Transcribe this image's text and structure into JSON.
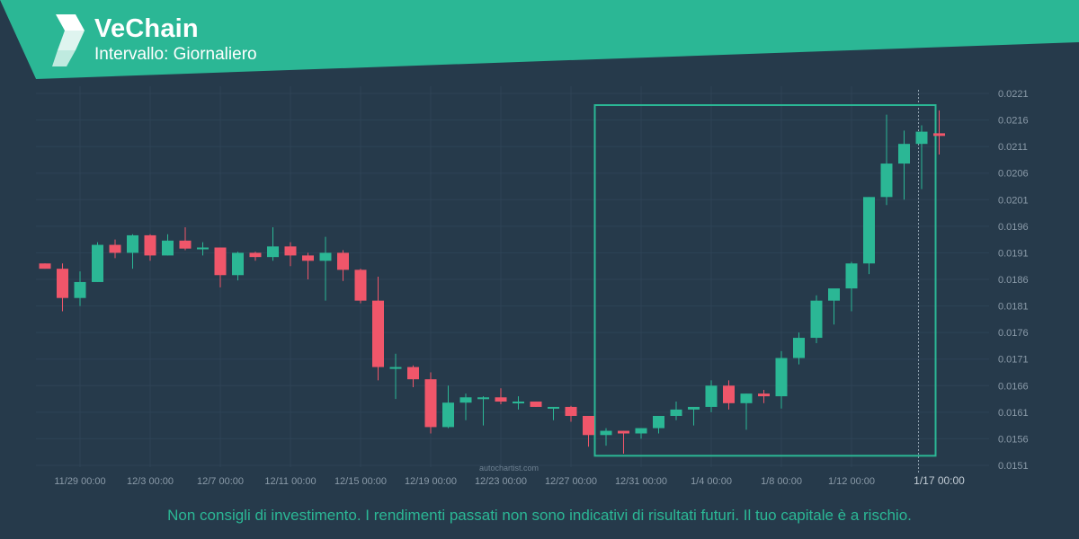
{
  "header": {
    "title": "VeChain",
    "subtitle": "Intervallo: Giornaliero",
    "logo_icon": "vechain-logo-icon"
  },
  "watermark": "autochartist.com",
  "disclaimer": "Non consigli di investimento. I rendimenti passati non sono indicativi di risultati futuri. Il tuo capitale è a rischio.",
  "colors": {
    "background": "#263a4b",
    "brand": "#2bb795",
    "bullish": "#2bb795",
    "bearish": "#f0566a",
    "grid": "#2e4356",
    "axis_text": "#8a9aa8"
  },
  "chart_data": {
    "type": "candlestick",
    "interval": "daily",
    "ylim": [
      0.0151,
      0.0221
    ],
    "y_ticks": [
      0.0151,
      0.0156,
      0.0161,
      0.0166,
      0.0171,
      0.0176,
      0.0181,
      0.0186,
      0.0191,
      0.0196,
      0.0201,
      0.0206,
      0.0211,
      0.0216,
      0.0221
    ],
    "x_tick_labels": [
      {
        "index": 2,
        "label": "11/29 00:00"
      },
      {
        "index": 6,
        "label": "12/3 00:00"
      },
      {
        "index": 10,
        "label": "12/7 00:00"
      },
      {
        "index": 14,
        "label": "12/11 00:00"
      },
      {
        "index": 18,
        "label": "12/15 00:00"
      },
      {
        "index": 22,
        "label": "12/19 00:00"
      },
      {
        "index": 26,
        "label": "12/23 00:00"
      },
      {
        "index": 30,
        "label": "12/27 00:00"
      },
      {
        "index": 34,
        "label": "12/31 00:00"
      },
      {
        "index": 38,
        "label": "1/4 00:00"
      },
      {
        "index": 42,
        "label": "1/8 00:00"
      },
      {
        "index": 46,
        "label": "1/12 00:00"
      },
      {
        "index": 51,
        "label": "1/17 00:00",
        "current": true
      }
    ],
    "candles": [
      {
        "o": 0.0189,
        "h": 0.0189,
        "l": 0.0188,
        "c": 0.0188
      },
      {
        "o": 0.0188,
        "h": 0.0189,
        "l": 0.018,
        "c": 0.01825
      },
      {
        "o": 0.01825,
        "h": 0.01875,
        "l": 0.0181,
        "c": 0.01855
      },
      {
        "o": 0.01855,
        "h": 0.0193,
        "l": 0.01855,
        "c": 0.01925
      },
      {
        "o": 0.01925,
        "h": 0.01935,
        "l": 0.019,
        "c": 0.0191
      },
      {
        "o": 0.0191,
        "h": 0.01945,
        "l": 0.0188,
        "c": 0.01943
      },
      {
        "o": 0.01943,
        "h": 0.01945,
        "l": 0.01895,
        "c": 0.01905
      },
      {
        "o": 0.01905,
        "h": 0.01945,
        "l": 0.01905,
        "c": 0.01933
      },
      {
        "o": 0.01933,
        "h": 0.01958,
        "l": 0.01915,
        "c": 0.01918
      },
      {
        "o": 0.0192,
        "h": 0.0193,
        "l": 0.01905,
        "c": 0.0192
      },
      {
        "o": 0.0192,
        "h": 0.0192,
        "l": 0.01845,
        "c": 0.01868
      },
      {
        "o": 0.01868,
        "h": 0.01912,
        "l": 0.01858,
        "c": 0.0191
      },
      {
        "o": 0.0191,
        "h": 0.01912,
        "l": 0.01895,
        "c": 0.01902
      },
      {
        "o": 0.01902,
        "h": 0.01958,
        "l": 0.01895,
        "c": 0.01922
      },
      {
        "o": 0.01922,
        "h": 0.0193,
        "l": 0.01885,
        "c": 0.01905
      },
      {
        "o": 0.01905,
        "h": 0.0191,
        "l": 0.0186,
        "c": 0.01895
      },
      {
        "o": 0.01895,
        "h": 0.0194,
        "l": 0.0182,
        "c": 0.0191
      },
      {
        "o": 0.0191,
        "h": 0.01915,
        "l": 0.01857,
        "c": 0.01878
      },
      {
        "o": 0.01878,
        "h": 0.0188,
        "l": 0.01815,
        "c": 0.0182
      },
      {
        "o": 0.0182,
        "h": 0.01865,
        "l": 0.0167,
        "c": 0.01695
      },
      {
        "o": 0.01695,
        "h": 0.0172,
        "l": 0.01635,
        "c": 0.01695
      },
      {
        "o": 0.01695,
        "h": 0.01698,
        "l": 0.01657,
        "c": 0.01672
      },
      {
        "o": 0.01672,
        "h": 0.01685,
        "l": 0.0157,
        "c": 0.01582
      },
      {
        "o": 0.01582,
        "h": 0.0166,
        "l": 0.0158,
        "c": 0.01628
      },
      {
        "o": 0.01628,
        "h": 0.01645,
        "l": 0.01595,
        "c": 0.01638
      },
      {
        "o": 0.01638,
        "h": 0.0164,
        "l": 0.01585,
        "c": 0.01638
      },
      {
        "o": 0.01638,
        "h": 0.01655,
        "l": 0.01625,
        "c": 0.0163
      },
      {
        "o": 0.0163,
        "h": 0.0164,
        "l": 0.01615,
        "c": 0.0163
      },
      {
        "o": 0.0163,
        "h": 0.0163,
        "l": 0.0162,
        "c": 0.0162
      },
      {
        "o": 0.0162,
        "h": 0.0162,
        "l": 0.01595,
        "c": 0.0162
      },
      {
        "o": 0.0162,
        "h": 0.01622,
        "l": 0.01592,
        "c": 0.01603
      },
      {
        "o": 0.01603,
        "h": 0.01603,
        "l": 0.01545,
        "c": 0.01567
      },
      {
        "o": 0.01567,
        "h": 0.0158,
        "l": 0.01547,
        "c": 0.01575
      },
      {
        "o": 0.01575,
        "h": 0.01575,
        "l": 0.01532,
        "c": 0.0157
      },
      {
        "o": 0.0157,
        "h": 0.0158,
        "l": 0.0156,
        "c": 0.0158
      },
      {
        "o": 0.0158,
        "h": 0.01603,
        "l": 0.0157,
        "c": 0.01603
      },
      {
        "o": 0.01603,
        "h": 0.0163,
        "l": 0.01595,
        "c": 0.01615
      },
      {
        "o": 0.01615,
        "h": 0.0162,
        "l": 0.01585,
        "c": 0.0162
      },
      {
        "o": 0.0162,
        "h": 0.0167,
        "l": 0.0161,
        "c": 0.0166
      },
      {
        "o": 0.0166,
        "h": 0.0167,
        "l": 0.01615,
        "c": 0.01627
      },
      {
        "o": 0.01627,
        "h": 0.01645,
        "l": 0.01577,
        "c": 0.01645
      },
      {
        "o": 0.01645,
        "h": 0.01652,
        "l": 0.01627,
        "c": 0.0164
      },
      {
        "o": 0.0164,
        "h": 0.01725,
        "l": 0.01617,
        "c": 0.01712
      },
      {
        "o": 0.01712,
        "h": 0.0176,
        "l": 0.017,
        "c": 0.0175
      },
      {
        "o": 0.0175,
        "h": 0.0183,
        "l": 0.0174,
        "c": 0.0182
      },
      {
        "o": 0.0182,
        "h": 0.0184,
        "l": 0.01775,
        "c": 0.01843
      },
      {
        "o": 0.01843,
        "h": 0.01893,
        "l": 0.018,
        "c": 0.0189
      },
      {
        "o": 0.0189,
        "h": 0.02015,
        "l": 0.0187,
        "c": 0.02015
      },
      {
        "o": 0.02015,
        "h": 0.0217,
        "l": 0.02,
        "c": 0.02078
      },
      {
        "o": 0.02078,
        "h": 0.0214,
        "l": 0.0201,
        "c": 0.02115
      },
      {
        "o": 0.02115,
        "h": 0.0215,
        "l": 0.0203,
        "c": 0.02138
      },
      {
        "o": 0.02135,
        "h": 0.02178,
        "l": 0.02095,
        "c": 0.0213
      }
    ],
    "pattern_box": {
      "start_index": 32,
      "end_index": 51,
      "high": 0.02188,
      "low": 0.01528
    }
  }
}
